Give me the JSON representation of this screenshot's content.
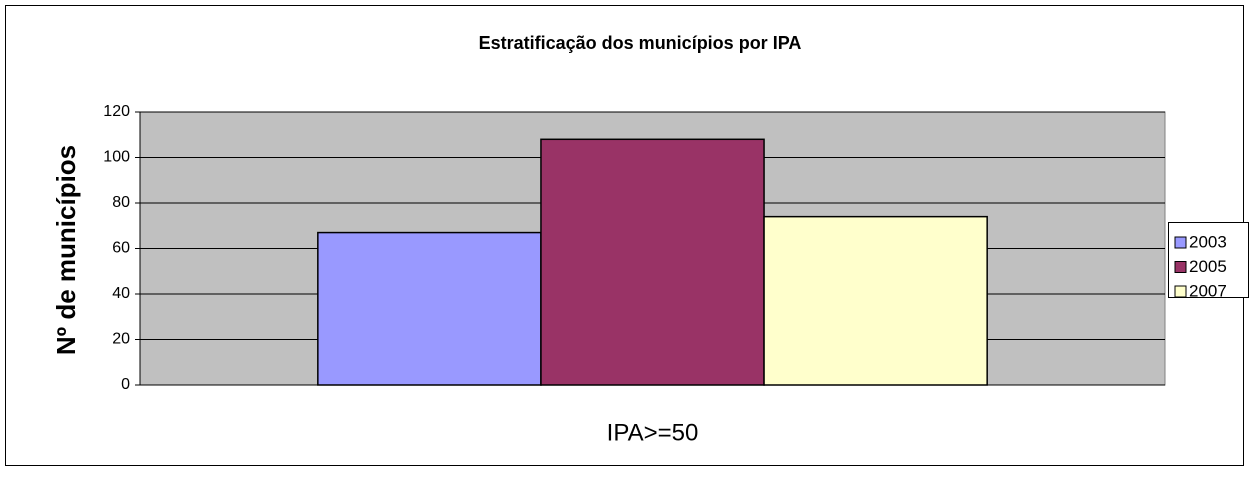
{
  "chart_data": {
    "type": "bar",
    "title": "Estratificação dos municípios por IPA",
    "y_label": "Nº de municípios",
    "categories": [
      "IPA>=50"
    ],
    "series": [
      {
        "name": "2003",
        "color": "#9999ff",
        "values": [
          67
        ]
      },
      {
        "name": "2005",
        "color": "#993366",
        "values": [
          108
        ]
      },
      {
        "name": "2007",
        "color": "#ffffcc",
        "values": [
          74
        ]
      }
    ],
    "ylim": [
      0,
      120
    ],
    "yticks": [
      0,
      20,
      40,
      60,
      80,
      100,
      120
    ],
    "grid": true,
    "legend": "right"
  }
}
